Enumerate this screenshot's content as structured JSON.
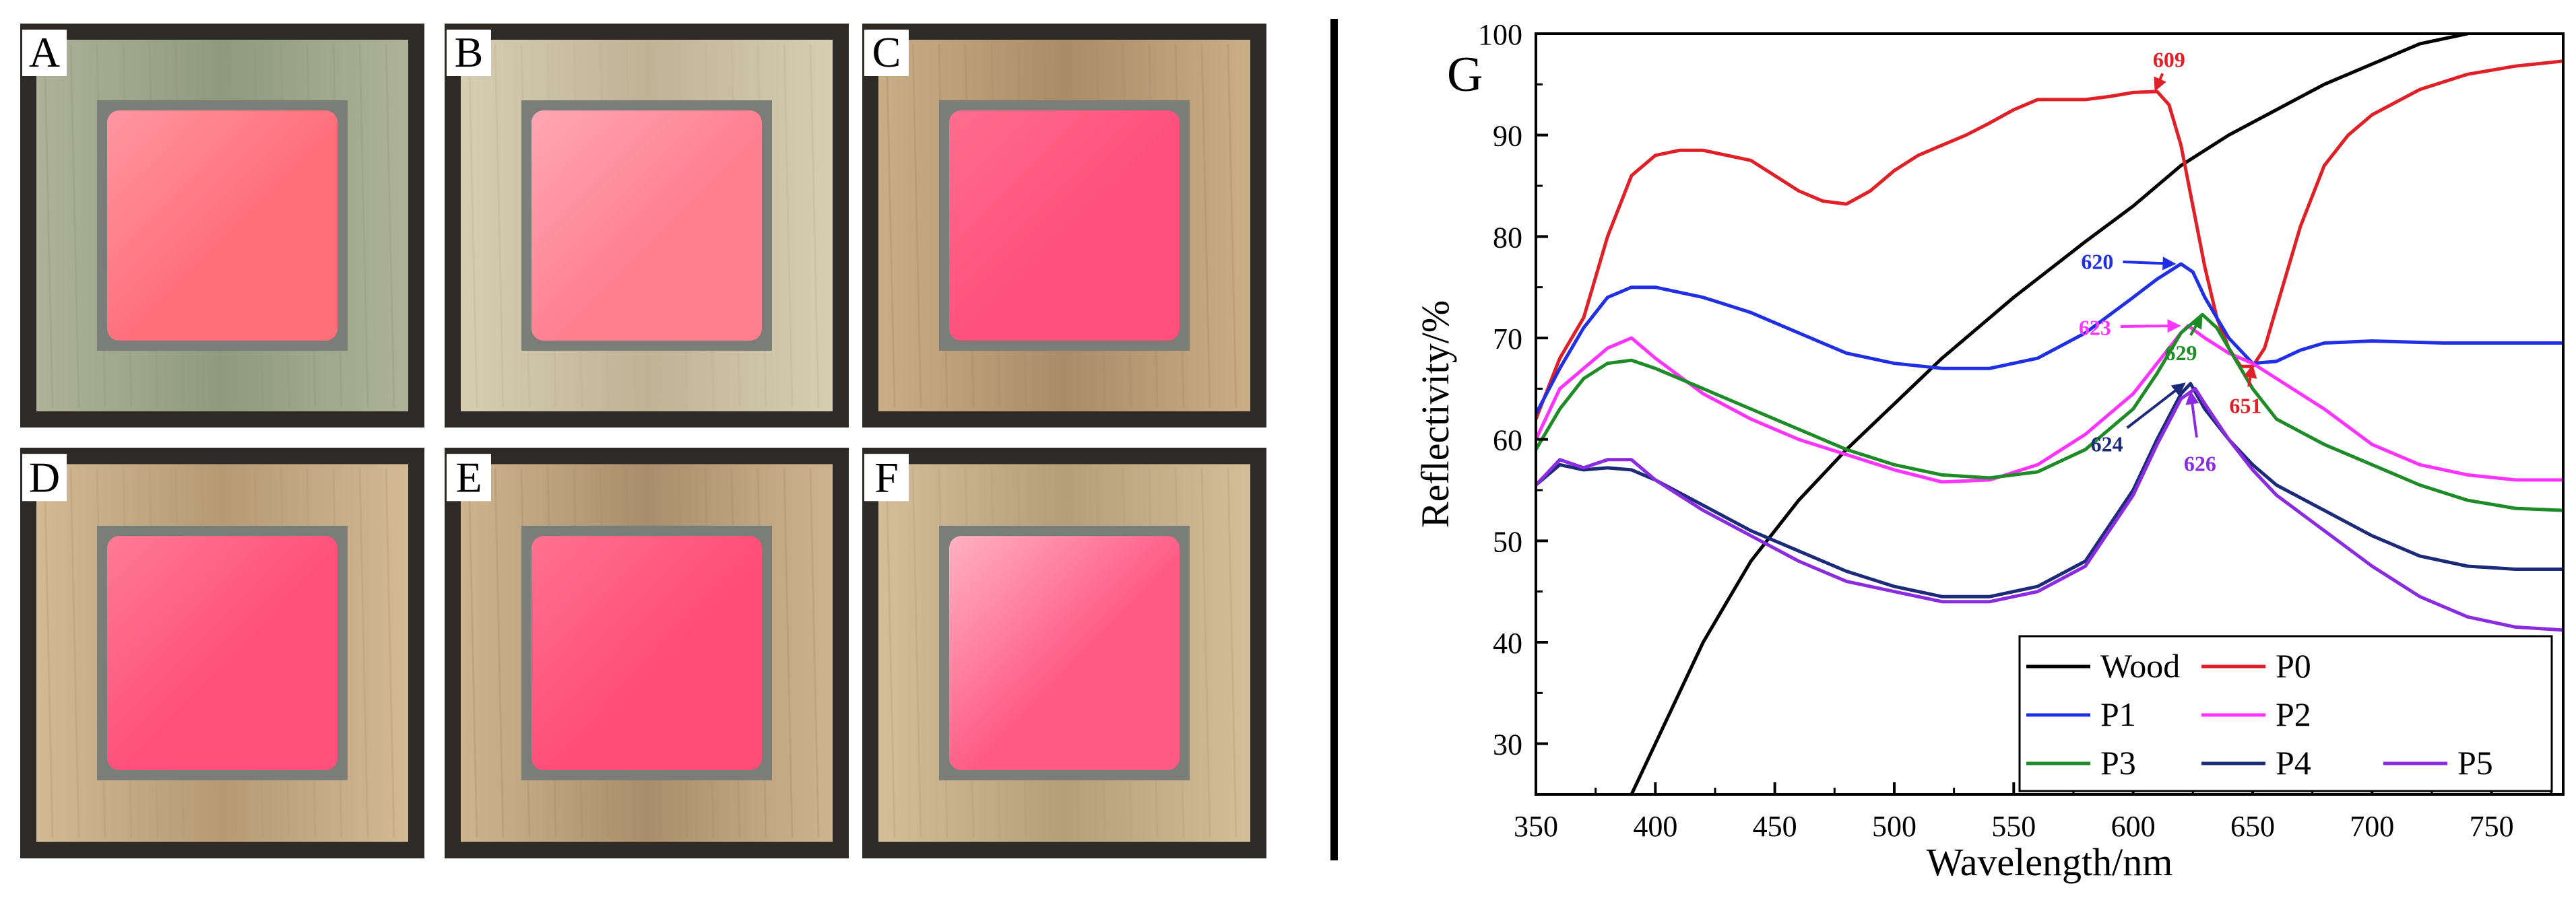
{
  "figure": {
    "panels": [
      {
        "label": "A",
        "board_color": "#aeb298",
        "grain_color": "#8f9a7f",
        "inner_color": "#ff6f7a",
        "highlight": "#ff96a0"
      },
      {
        "label": "B",
        "board_color": "#d6cdb2",
        "grain_color": "#bfb396",
        "inner_color": "#ff7f8f",
        "highlight": "#ffa7b3"
      },
      {
        "label": "C",
        "board_color": "#c9ae86",
        "grain_color": "#a98c68",
        "inner_color": "#ff4f7c",
        "highlight": "#ff6d8f"
      },
      {
        "label": "D",
        "board_color": "#d2ba94",
        "grain_color": "#b59a74",
        "inner_color": "#ff4f7a",
        "highlight": "#ff7a95"
      },
      {
        "label": "E",
        "board_color": "#ceb48e",
        "grain_color": "#a88e6c",
        "inner_color": "#ff4d78",
        "highlight": "#ff7190"
      },
      {
        "label": "F",
        "board_color": "#d4be9a",
        "grain_color": "#b59e7a",
        "inner_color": "#ff5a84",
        "highlight": "#ffb2c2"
      }
    ],
    "chart_label": "G"
  },
  "chart_data": {
    "type": "line",
    "xlabel": "Wavelength/nm",
    "ylabel": "Reflectivity/%",
    "xlim": [
      350,
      780
    ],
    "ylim": [
      25,
      100
    ],
    "xticks": [
      "350",
      "400",
      "450",
      "500",
      "550",
      "600",
      "650",
      "700",
      "750"
    ],
    "yticks": [
      "30",
      "40",
      "50",
      "60",
      "70",
      "80",
      "90",
      "100"
    ],
    "series": [
      {
        "name": "Wood",
        "color": "#000000",
        "x": [
          390,
          400,
          410,
          420,
          430,
          440,
          450,
          460,
          480,
          500,
          520,
          550,
          580,
          600,
          620,
          640,
          660,
          680,
          700,
          720,
          740
        ],
        "y": [
          25,
          30,
          35,
          40,
          44,
          48,
          51,
          54,
          59,
          63.5,
          68,
          74,
          79.5,
          83,
          87,
          90,
          92.5,
          95,
          97,
          99,
          100
        ]
      },
      {
        "name": "P0",
        "color": "#e01f26",
        "x": [
          350,
          360,
          370,
          380,
          390,
          400,
          410,
          420,
          430,
          440,
          450,
          460,
          470,
          480,
          490,
          500,
          510,
          520,
          530,
          540,
          550,
          560,
          570,
          580,
          590,
          600,
          610,
          615,
          620,
          625,
          630,
          635,
          640,
          645,
          650,
          655,
          660,
          670,
          680,
          690,
          700,
          720,
          740,
          760,
          780
        ],
        "y": [
          62,
          68,
          72,
          80,
          86,
          88,
          88.5,
          88.5,
          88,
          87.5,
          86,
          84.5,
          83.5,
          83.2,
          84.5,
          86.5,
          88,
          89,
          90,
          91.2,
          92.5,
          93.5,
          93.5,
          93.5,
          93.8,
          94.2,
          94.3,
          93,
          89,
          83,
          77,
          72,
          69,
          67.2,
          67.2,
          69,
          73,
          81,
          87,
          90,
          92,
          94.5,
          96,
          96.8,
          97.3
        ]
      },
      {
        "name": "P1",
        "color": "#1f2fe6",
        "x": [
          350,
          360,
          370,
          380,
          390,
          400,
          420,
          440,
          460,
          480,
          500,
          520,
          540,
          560,
          580,
          600,
          610,
          620,
          625,
          630,
          640,
          650,
          660,
          670,
          680,
          700,
          730,
          760,
          780
        ],
        "y": [
          62.5,
          67,
          71,
          74,
          75,
          75,
          74,
          72.5,
          70.5,
          68.5,
          67.5,
          67,
          67,
          68,
          70.5,
          74,
          75.8,
          77.3,
          76.5,
          74,
          70,
          67.5,
          67.7,
          68.8,
          69.5,
          69.7,
          69.5,
          69.5,
          69.5
        ]
      },
      {
        "name": "P2",
        "color": "#ff33ff",
        "x": [
          350,
          360,
          370,
          380,
          390,
          400,
          420,
          440,
          460,
          480,
          500,
          520,
          540,
          560,
          580,
          600,
          610,
          620,
          623,
          630,
          640,
          650,
          660,
          680,
          700,
          720,
          740,
          760,
          780
        ],
        "y": [
          60,
          65,
          67,
          69,
          70,
          68,
          64.5,
          62,
          60,
          58.5,
          57,
          55.8,
          56,
          57.5,
          60.5,
          64.5,
          67.5,
          70.5,
          71.2,
          70,
          68.5,
          67.5,
          66,
          63,
          59.5,
          57.5,
          56.5,
          56,
          56
        ]
      },
      {
        "name": "P3",
        "color": "#1e8c26",
        "x": [
          350,
          360,
          370,
          380,
          390,
          400,
          420,
          440,
          460,
          480,
          500,
          520,
          540,
          560,
          580,
          600,
          610,
          620,
          629,
          635,
          640,
          650,
          660,
          680,
          700,
          720,
          740,
          760,
          780
        ],
        "y": [
          59,
          63,
          66,
          67.5,
          67.8,
          67,
          65,
          63,
          61,
          59,
          57.5,
          56.5,
          56.2,
          56.8,
          59,
          63,
          66.5,
          70.5,
          72.3,
          71,
          69,
          65,
          62,
          59.5,
          57.5,
          55.5,
          54,
          53.2,
          53
        ]
      },
      {
        "name": "P4",
        "color": "#1c2a7a",
        "x": [
          350,
          360,
          370,
          380,
          390,
          400,
          420,
          440,
          460,
          480,
          500,
          520,
          540,
          560,
          580,
          600,
          610,
          620,
          624,
          630,
          640,
          650,
          660,
          680,
          700,
          720,
          740,
          760,
          780
        ],
        "y": [
          55.5,
          57.5,
          57,
          57.2,
          57,
          56,
          53.5,
          51,
          49,
          47,
          45.5,
          44.5,
          44.5,
          45.5,
          48,
          55,
          60,
          64.5,
          65.5,
          63,
          60,
          57.5,
          55.5,
          53,
          50.5,
          48.5,
          47.5,
          47.2,
          47.2
        ]
      },
      {
        "name": "P5",
        "color": "#8a2be2",
        "x": [
          350,
          360,
          370,
          380,
          390,
          400,
          420,
          440,
          460,
          480,
          500,
          520,
          540,
          560,
          580,
          600,
          610,
          620,
          626,
          630,
          640,
          650,
          660,
          680,
          700,
          720,
          740,
          760,
          780
        ],
        "y": [
          55.5,
          58,
          57.2,
          58,
          58,
          56,
          53,
          50.5,
          48,
          46,
          45,
          44,
          44,
          45,
          47.5,
          54.5,
          59.5,
          64,
          65,
          63.5,
          60,
          57,
          54.5,
          51,
          47.5,
          44.5,
          42.5,
          41.5,
          41.2
        ]
      }
    ],
    "annotations": [
      {
        "text": "609",
        "color": "#e01f26",
        "x": 609,
        "y": 94.3,
        "tx": 615,
        "ty": 97.5
      },
      {
        "text": "620",
        "color": "#1f2fe6",
        "x": 618,
        "y": 77.3,
        "tx": 585,
        "ty": 77.6
      },
      {
        "text": "623",
        "color": "#ff33ff",
        "x": 620,
        "y": 71.2,
        "tx": 584,
        "ty": 71.1
      },
      {
        "text": "629",
        "color": "#1e8c26",
        "x": 629,
        "y": 72.3,
        "tx": 620,
        "ty": 68.6
      },
      {
        "text": "651",
        "color": "#e01f26",
        "x": 650,
        "y": 67.4,
        "tx": 647,
        "ty": 63.4
      },
      {
        "text": "624",
        "color": "#1c2a7a",
        "x": 622,
        "y": 65.6,
        "tx": 589,
        "ty": 59.6
      },
      {
        "text": "626",
        "color": "#8a2be2",
        "x": 624,
        "y": 64.8,
        "tx": 628,
        "ty": 57.7
      }
    ],
    "legend_position": "bottom-right",
    "legend": [
      {
        "name": "Wood",
        "color": "#000000"
      },
      {
        "name": "P0",
        "color": "#e01f26"
      },
      {
        "name": "P1",
        "color": "#1f2fe6"
      },
      {
        "name": "P2",
        "color": "#ff33ff"
      },
      {
        "name": "P3",
        "color": "#1e8c26"
      },
      {
        "name": "P4",
        "color": "#1c2a7a"
      },
      {
        "name": "P5",
        "color": "#8a2be2"
      }
    ]
  }
}
